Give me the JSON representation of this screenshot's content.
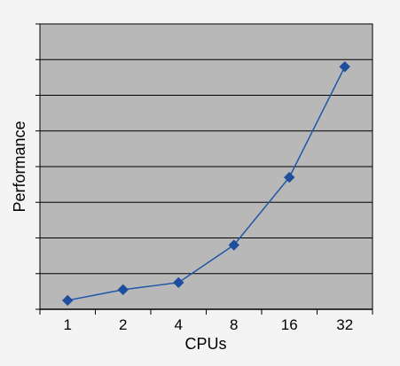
{
  "chart_data": {
    "type": "line",
    "xlabel": "CPUs",
    "ylabel": "Performance",
    "categories": [
      "1",
      "2",
      "4",
      "8",
      "16",
      "32"
    ],
    "series": [
      {
        "values": [
          0.25,
          0.55,
          0.75,
          1.8,
          3.7,
          6.8
        ]
      }
    ],
    "ylim": [
      0,
      8
    ],
    "y_gridlines": 7,
    "y_tick_labels_shown": false,
    "grid": true,
    "legend": "none",
    "colors": {
      "plot_background": "#b8b8b8",
      "page_background": "#f4f4f4",
      "line": "#1f57a8",
      "marker": "#1f4e9e",
      "grid": "#000000"
    },
    "marker": "diamond"
  }
}
